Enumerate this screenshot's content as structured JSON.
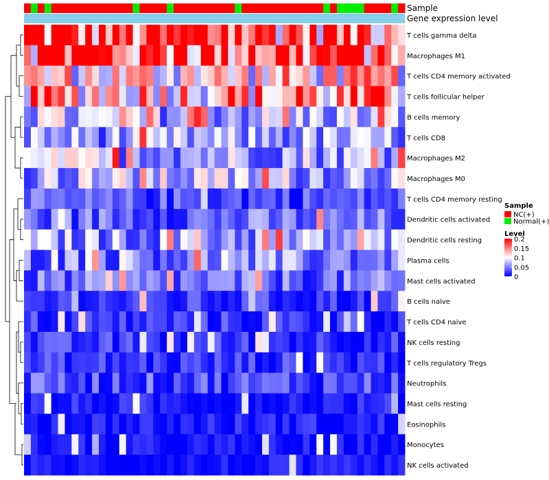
{
  "chart_data": {
    "type": "heatmap",
    "annotation_labels": {
      "sample": "Sample",
      "gene_expression": "Gene expression level"
    },
    "sample_groups": [
      "NC(+)",
      "Normal(+)",
      "NC(+)",
      "Normal(+)",
      "NC(+)",
      "NC(+)",
      "NC(+)",
      "NC(+)",
      "NC(+)",
      "NC(+)",
      "NC(+)",
      "NC(+)",
      "NC(+)",
      "NC(+)",
      "NC(+)",
      "NC(+)",
      "Normal(+)",
      "NC(+)",
      "NC(+)",
      "NC(+)",
      "NC(+)",
      "Normal(+)",
      "NC(+)",
      "NC(+)",
      "NC(+)",
      "NC(+)",
      "NC(+)",
      "NC(+)",
      "NC(+)",
      "NC(+)",
      "NC(+)",
      "Normal(+)",
      "NC(+)",
      "NC(+)",
      "NC(+)",
      "NC(+)",
      "NC(+)",
      "NC(+)",
      "NC(+)",
      "NC(+)",
      "NC(+)",
      "NC(+)",
      "NC(+)",
      "NC(+)",
      "Normal(+)",
      "NC(+)",
      "Normal(+)",
      "Normal(+)",
      "Normal(+)",
      "Normal(+)",
      "NC(+)",
      "NC(+)",
      "NC(+)",
      "NC(+)",
      "Normal(+)",
      "NC(+)"
    ],
    "rows": [
      "T cells gamma delta",
      "Macrophages M1",
      "T cells CD4 memory activated",
      "T cells follicular helper",
      "B cells memory",
      "T cells CD8",
      "Macrophages M2",
      "Macrophages M0",
      "T cells CD4 memory resting",
      "Dendritic cells activated",
      "Dendritic cells resting",
      "Plasma cells",
      "Mast cells activated",
      "B cells naive",
      "T cells CD4 naive",
      "NK cells resting",
      "T cells regulatory  Tregs",
      "Neutrophils",
      "Mast cells resting",
      "Eosinophils",
      "Monocytes",
      "NK cells activated"
    ],
    "row_base": [
      0.17,
      0.18,
      0.11,
      0.13,
      0.07,
      0.06,
      0.07,
      0.07,
      0.03,
      0.04,
      0.06,
      0.05,
      0.04,
      0.02,
      0.02,
      0.02,
      0.02,
      0.03,
      0.01,
      0.01,
      0.005,
      0.005
    ],
    "legend": {
      "sample_title": "Sample",
      "groups": [
        {
          "label": "NC(+)",
          "color": "#ff0000"
        },
        {
          "label": "Normal(+)",
          "color": "#00ee00"
        }
      ],
      "level_title": "Level",
      "ticks": [
        "0.2",
        "0.15",
        "0.1",
        "0.05",
        "0"
      ],
      "tick_values": [
        0.2,
        0.15,
        0.1,
        0.05,
        0
      ]
    },
    "range": [
      0,
      0.2
    ],
    "colors": {
      "low": "#0000ff",
      "mid": "#ffffff",
      "high": "#ff0000",
      "gene_bar": "#87ceeb"
    }
  }
}
